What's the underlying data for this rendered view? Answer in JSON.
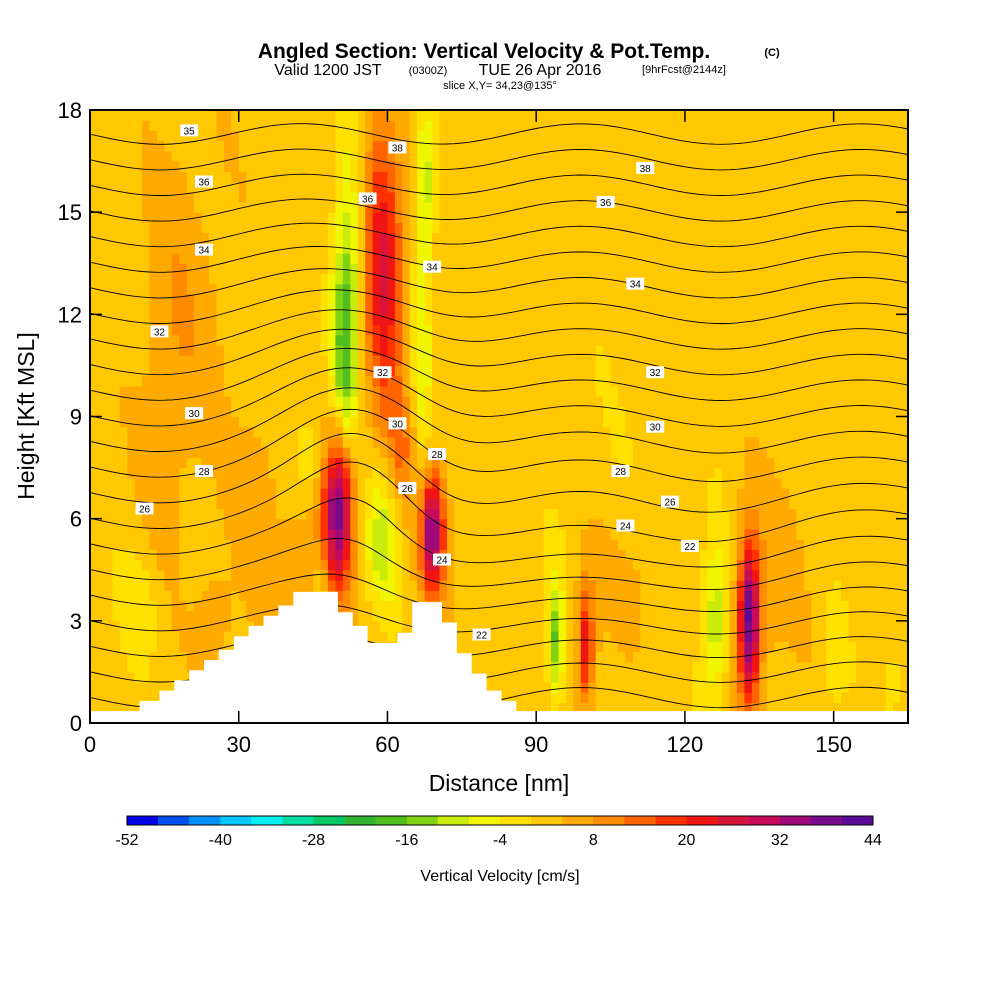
{
  "header": {
    "title": "Angled Section: Vertical Velocity & Pot.Temp.",
    "title_unit": "(C)",
    "valid_prefix": "Valid 1200 JST",
    "valid_utc": "(0300Z)",
    "valid_date": "TUE 26 Apr 2016",
    "forecast": "[9hrFcst@2144z]",
    "slice": "slice X,Y= 34,23@135°"
  },
  "chart_data": {
    "type": "heatmap",
    "xlabel": "Distance [nm]",
    "ylabel": "Height [Kft MSL]",
    "xlim": [
      0,
      165
    ],
    "ylim": [
      0,
      18
    ],
    "xticks": [
      0,
      30,
      60,
      90,
      120,
      150
    ],
    "yticks": [
      0,
      3,
      6,
      9,
      12,
      15,
      18
    ],
    "colorbar": {
      "title": "Vertical Velocity [cm/s]",
      "min": -52,
      "max": 44,
      "step": 4,
      "tick_values": [
        -52,
        -40,
        -28,
        -16,
        -4,
        8,
        20,
        32,
        44
      ],
      "colors": [
        "#0000e6",
        "#0050f0",
        "#0090f8",
        "#00c8ff",
        "#00f0f0",
        "#00dca0",
        "#00c864",
        "#32b432",
        "#50be1e",
        "#82d214",
        "#c8eb0a",
        "#f0f500",
        "#ffe100",
        "#ffc800",
        "#ffaa00",
        "#ff8c00",
        "#ff6400",
        "#ff3200",
        "#f01414",
        "#d7143c",
        "#c80a5a",
        "#a00a78",
        "#780a8c",
        "#5a0a96"
      ]
    },
    "terrain": {
      "x": [
        0,
        10,
        10,
        14,
        14,
        17,
        17,
        20,
        20,
        23,
        23,
        26,
        26,
        29,
        29,
        32,
        32,
        35,
        35,
        38,
        38,
        41,
        41,
        44,
        44,
        47,
        47,
        50,
        50,
        53,
        53,
        56,
        56,
        59,
        59,
        62,
        62,
        65,
        65,
        68,
        68,
        71,
        71,
        74,
        74,
        77,
        77,
        80,
        80,
        83,
        83,
        86,
        86,
        89,
        89,
        92,
        92,
        165
      ],
      "y": [
        0.35,
        0.35,
        0.65,
        0.65,
        0.95,
        0.95,
        1.25,
        1.25,
        1.55,
        1.55,
        1.85,
        1.85,
        2.15,
        2.15,
        2.55,
        2.55,
        2.85,
        2.85,
        3.15,
        3.15,
        3.45,
        3.45,
        3.85,
        3.85,
        3.85,
        3.85,
        3.85,
        3.85,
        3.25,
        3.25,
        2.85,
        2.85,
        2.35,
        2.35,
        2.35,
        2.35,
        2.65,
        2.65,
        3.55,
        3.55,
        3.55,
        3.55,
        2.95,
        2.95,
        2.05,
        2.05,
        1.45,
        1.45,
        0.95,
        0.95,
        0.65,
        0.65,
        0.35,
        0.35,
        0.35,
        0.35,
        0.35,
        0.35
      ]
    },
    "velocity_features": [
      {
        "x": 50,
        "y": 6.3,
        "sx": 2.0,
        "sy": 1.5,
        "w": 30
      },
      {
        "x": 50,
        "y": 6.6,
        "sx": 3.5,
        "sy": 2.4,
        "w": 8
      },
      {
        "x": 69,
        "y": 5.6,
        "sx": 1.5,
        "sy": 1.1,
        "w": 28
      },
      {
        "x": 69,
        "y": 5.6,
        "sx": 2.8,
        "sy": 1.8,
        "w": 8
      },
      {
        "x": 59,
        "y": 13.5,
        "sx": 2.8,
        "sy": 2.2,
        "w": 18
      },
      {
        "x": 60,
        "y": 11.0,
        "sx": 2.5,
        "sy": 3.5,
        "w": 8
      },
      {
        "x": 63,
        "y": 8.0,
        "sx": 1.8,
        "sy": 1.2,
        "w": 8
      },
      {
        "x": 133,
        "y": 3.0,
        "sx": 1.4,
        "sy": 1.5,
        "w": 32
      },
      {
        "x": 133,
        "y": 3.3,
        "sx": 2.5,
        "sy": 2.2,
        "w": 8
      },
      {
        "x": 100,
        "y": 2.3,
        "sx": 1.0,
        "sy": 1.1,
        "w": 16
      },
      {
        "x": 100,
        "y": 2.5,
        "sx": 2.0,
        "sy": 1.8,
        "w": 6
      },
      {
        "x": 52,
        "y": 12.5,
        "sx": 2.0,
        "sy": 3.2,
        "w": -16
      },
      {
        "x": 51,
        "y": 10.5,
        "sx": 1.8,
        "sy": 1.8,
        "w": -10
      },
      {
        "x": 59,
        "y": 5.5,
        "sx": 2.5,
        "sy": 1.5,
        "w": -14
      },
      {
        "x": 68,
        "y": 16.0,
        "sx": 1.5,
        "sy": 1.5,
        "w": -10
      },
      {
        "x": 67,
        "y": 11.0,
        "sx": 1.4,
        "sy": 4.0,
        "w": -8
      },
      {
        "x": 94,
        "y": 2.5,
        "sx": 0.9,
        "sy": 1.1,
        "w": -14
      },
      {
        "x": 94,
        "y": 2.5,
        "sx": 2.0,
        "sy": 1.5,
        "w": -5
      },
      {
        "x": 126,
        "y": 3.0,
        "sx": 1.5,
        "sy": 1.5,
        "w": -10
      },
      {
        "x": 126,
        "y": 3.0,
        "sx": 3.0,
        "sy": 2.0,
        "w": -4
      },
      {
        "x": 45,
        "y": 7.8,
        "sx": 3.0,
        "sy": 1.0,
        "w": -8
      },
      {
        "x": 38,
        "y": 9.0,
        "sx": 2.0,
        "sy": 2.0,
        "w": -3
      },
      {
        "x": 20,
        "y": 12.5,
        "sx": 6.0,
        "sy": 4.0,
        "w": 4
      },
      {
        "x": 15,
        "y": 9.0,
        "sx": 4.0,
        "sy": 3.5,
        "w": 3
      },
      {
        "x": 35,
        "y": 6.5,
        "sx": 4.0,
        "sy": 2.0,
        "w": 6
      },
      {
        "x": 140,
        "y": 4.5,
        "sx": 4.0,
        "sy": 2.0,
        "w": 3
      },
      {
        "x": 110,
        "y": 4.5,
        "sx": 6.0,
        "sy": 1.5,
        "w": 3
      },
      {
        "x": 150,
        "y": 1.8,
        "sx": 2.0,
        "sy": 1.2,
        "w": -4
      },
      {
        "x": 162,
        "y": 1.2,
        "sx": 1.5,
        "sy": 0.8,
        "w": -5
      },
      {
        "x": 10,
        "y": 3.5,
        "sx": 3.0,
        "sy": 1.2,
        "w": -5
      },
      {
        "x": 25,
        "y": 3.0,
        "sx": 2.5,
        "sy": 1.0,
        "w": 6
      },
      {
        "x": 42,
        "y": 4.0,
        "sx": 2.0,
        "sy": 1.5,
        "w": 6
      },
      {
        "x": 47,
        "y": 3.2,
        "sx": 1.5,
        "sy": 1.5,
        "w": -5
      },
      {
        "x": 58,
        "y": 16.5,
        "sx": 2.0,
        "sy": 1.5,
        "w": 6
      },
      {
        "x": 105,
        "y": 8.0,
        "sx": 10.0,
        "sy": 3.0,
        "w": -1
      }
    ],
    "theta_labels": [
      {
        "x": 20,
        "y": 17.4,
        "value": "35"
      },
      {
        "x": 62,
        "y": 16.9,
        "value": "38"
      },
      {
        "x": 112,
        "y": 16.3,
        "value": "38"
      },
      {
        "x": 23,
        "y": 15.9,
        "value": "36"
      },
      {
        "x": 56,
        "y": 15.4,
        "value": "36"
      },
      {
        "x": 104,
        "y": 15.3,
        "value": "36"
      },
      {
        "x": 23,
        "y": 13.9,
        "value": "34"
      },
      {
        "x": 69,
        "y": 13.4,
        "value": "34"
      },
      {
        "x": 110,
        "y": 12.9,
        "value": "34"
      },
      {
        "x": 14,
        "y": 11.5,
        "value": "32"
      },
      {
        "x": 59,
        "y": 10.3,
        "value": "32"
      },
      {
        "x": 114,
        "y": 10.3,
        "value": "32"
      },
      {
        "x": 21,
        "y": 9.1,
        "value": "30"
      },
      {
        "x": 62,
        "y": 8.8,
        "value": "30"
      },
      {
        "x": 114,
        "y": 8.7,
        "value": "30"
      },
      {
        "x": 23,
        "y": 7.4,
        "value": "28"
      },
      {
        "x": 70,
        "y": 7.9,
        "value": "28"
      },
      {
        "x": 107,
        "y": 7.4,
        "value": "28"
      },
      {
        "x": 11,
        "y": 6.3,
        "value": "26"
      },
      {
        "x": 64,
        "y": 6.9,
        "value": "26"
      },
      {
        "x": 117,
        "y": 6.5,
        "value": "26"
      },
      {
        "x": 108,
        "y": 5.8,
        "value": "24"
      },
      {
        "x": 71,
        "y": 4.8,
        "value": "24"
      },
      {
        "x": 121,
        "y": 5.2,
        "value": "22"
      },
      {
        "x": 79,
        "y": 2.6,
        "value": "22"
      }
    ]
  }
}
